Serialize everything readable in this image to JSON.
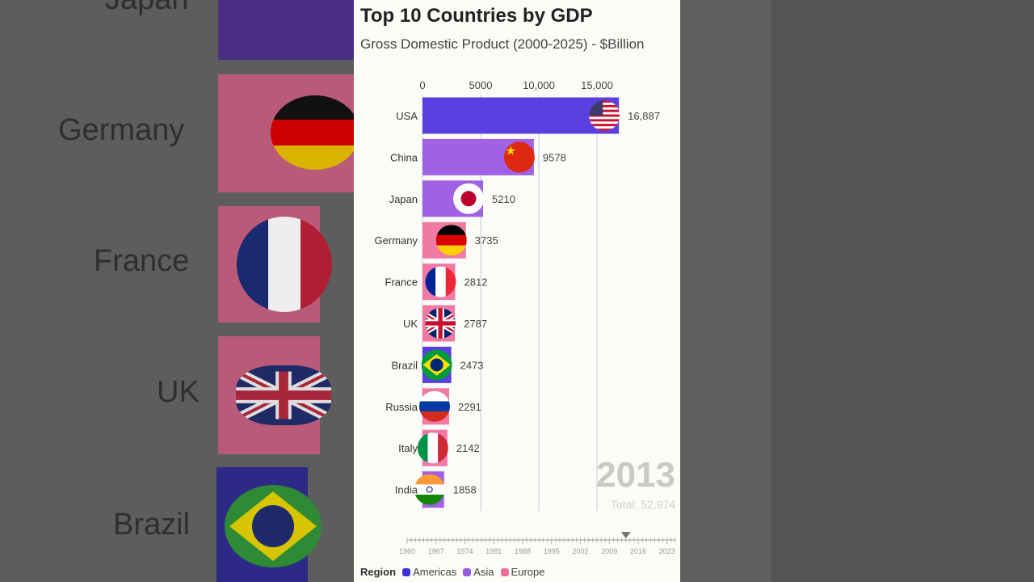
{
  "title": "Top 10 Countries by GDP",
  "subtitle": "Gross Domestic Product (2000-2025) - $Billion",
  "year": "2013",
  "total_label": "Total: 52,974",
  "legend": {
    "title": "Region",
    "items": [
      {
        "label": "Americas",
        "color": "#3b2fd6"
      },
      {
        "label": "Asia",
        "color": "#9b5be0"
      },
      {
        "label": "Europe",
        "color": "#ef6c9a"
      }
    ]
  },
  "background": {
    "labels": [
      "Japan",
      "Germany",
      "France",
      "UK",
      "Brazil"
    ]
  },
  "timeline": {
    "ticks": [
      "1960",
      "1967",
      "1974",
      "1981",
      "1988",
      "1995",
      "2002",
      "2009",
      "2016",
      "2023"
    ],
    "current": "2013"
  },
  "chart_data": {
    "type": "bar",
    "orientation": "horizontal",
    "x_ticks": [
      "0",
      "5000",
      "10,000",
      "15,000"
    ],
    "xlim": [
      0,
      17500
    ],
    "grid": true,
    "categories": [
      "USA",
      "China",
      "Japan",
      "Germany",
      "France",
      "UK",
      "Brazil",
      "Russia",
      "Italy",
      "India"
    ],
    "values": [
      16887,
      9578,
      5210,
      3735,
      2812,
      2787,
      2473,
      2291,
      2142,
      1858
    ],
    "value_labels": [
      "16,887",
      "9578",
      "5210",
      "3735",
      "2812",
      "2787",
      "2473",
      "2291",
      "2142",
      "1858"
    ],
    "regions": [
      "Americas",
      "Asia",
      "Asia",
      "Europe",
      "Europe",
      "Europe",
      "Americas",
      "Europe",
      "Europe",
      "Asia"
    ],
    "flags": [
      "usa-flag-icon",
      "china-flag-icon",
      "japan-flag-icon",
      "germany-flag-icon",
      "france-flag-icon",
      "uk-flag-icon",
      "brazil-flag-icon",
      "russia-flag-icon",
      "italy-flag-icon",
      "india-flag-icon"
    ]
  }
}
